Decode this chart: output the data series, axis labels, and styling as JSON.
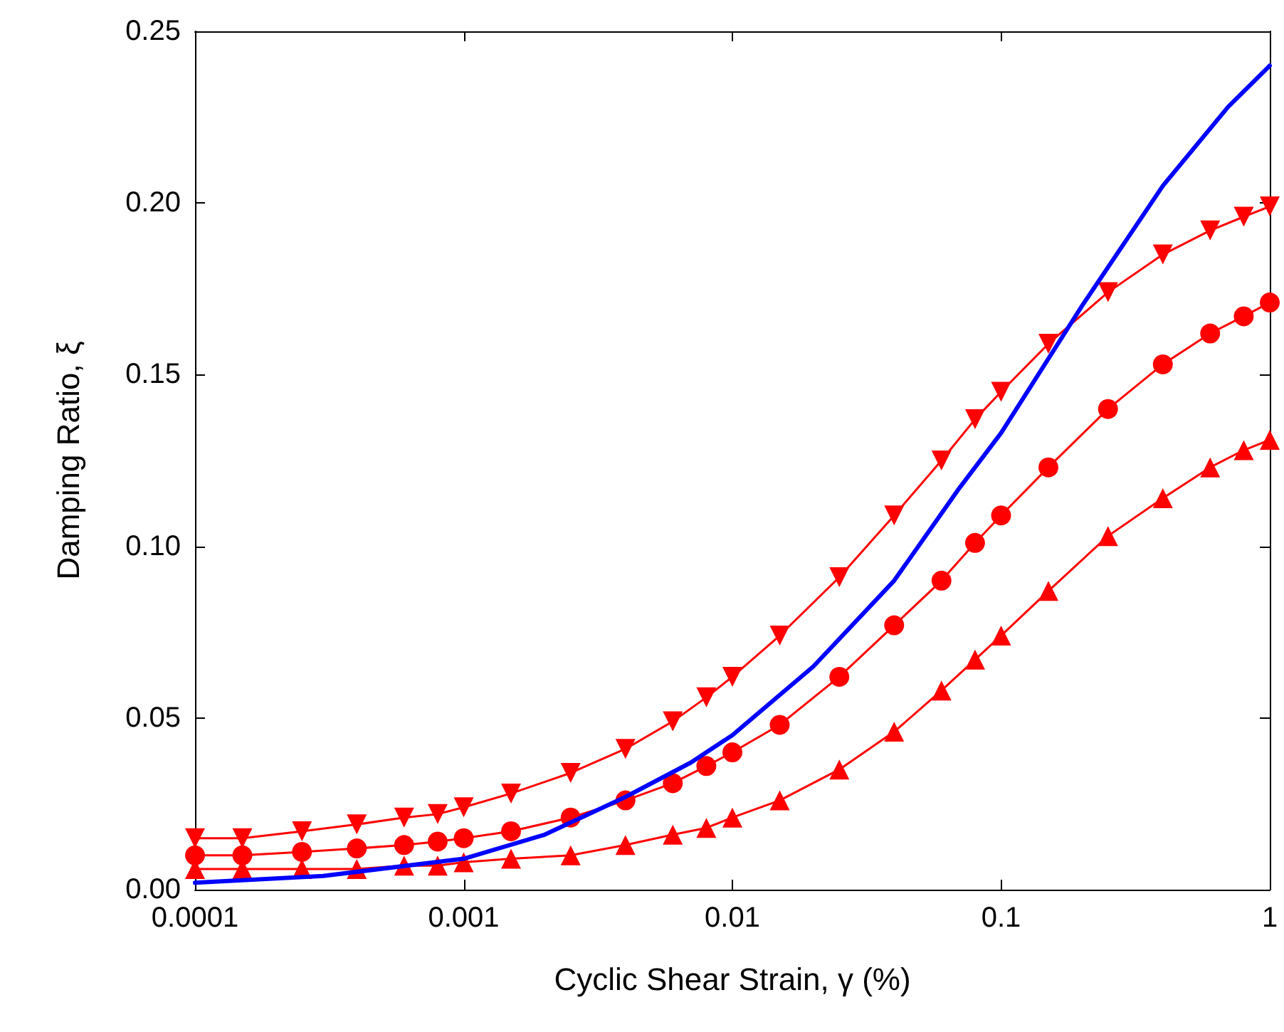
{
  "chart_data": {
    "type": "line",
    "xlabel": "Cyclic Shear Strain, γ (%)",
    "ylabel": "Damping Ratio, ξ",
    "log": "x",
    "grid": false,
    "line_style": "solid",
    "xlim": [
      0.0001,
      1
    ],
    "xticks": [
      {
        "value": 0.0001,
        "label": "0.0001"
      },
      {
        "value": 0.001,
        "label": "0.001"
      },
      {
        "value": 0.01,
        "label": "0.01"
      },
      {
        "value": 0.1,
        "label": "0.1"
      },
      {
        "value": 1,
        "label": "1"
      }
    ],
    "ylim": [
      0,
      0.25
    ],
    "yticks": [
      {
        "value": 0,
        "label": "0.00"
      },
      {
        "value": 0.05,
        "label": "0.05"
      },
      {
        "value": 0.1,
        "label": "0.10"
      },
      {
        "value": 0.15,
        "label": "0.15"
      },
      {
        "value": 0.2,
        "label": "0.20"
      },
      {
        "value": 0.25,
        "label": "0.25"
      }
    ],
    "series": [
      {
        "color": "#ff0000",
        "marker": "triangle-down",
        "x": [
          0.0001,
          0.00015,
          0.00025,
          0.0004,
          0.0006,
          0.0008,
          0.001,
          0.0015,
          0.0025,
          0.004,
          0.006,
          0.008,
          0.01,
          0.015,
          0.025,
          0.04,
          0.06,
          0.08,
          0.1,
          0.15,
          0.25,
          0.4,
          0.6,
          0.8,
          1
        ],
        "values": [
          0.015,
          0.015,
          0.017,
          0.019,
          0.021,
          0.022,
          0.024,
          0.028,
          0.034,
          0.041,
          0.049,
          0.056,
          0.062,
          0.074,
          0.091,
          0.109,
          0.125,
          0.137,
          0.145,
          0.159,
          0.174,
          0.185,
          0.192,
          0.196,
          0.199
        ]
      },
      {
        "color": "#ff0000",
        "marker": "circle",
        "x": [
          0.0001,
          0.00015,
          0.00025,
          0.0004,
          0.0006,
          0.0008,
          0.001,
          0.0015,
          0.0025,
          0.004,
          0.006,
          0.008,
          0.01,
          0.015,
          0.025,
          0.04,
          0.06,
          0.08,
          0.1,
          0.15,
          0.25,
          0.4,
          0.6,
          0.8,
          1
        ],
        "values": [
          0.01,
          0.01,
          0.011,
          0.012,
          0.013,
          0.014,
          0.015,
          0.017,
          0.021,
          0.026,
          0.031,
          0.036,
          0.04,
          0.048,
          0.062,
          0.077,
          0.09,
          0.101,
          0.109,
          0.123,
          0.14,
          0.153,
          0.162,
          0.167,
          0.171
        ]
      },
      {
        "color": "#ff0000",
        "marker": "triangle",
        "x": [
          0.0001,
          0.00015,
          0.00025,
          0.0004,
          0.0006,
          0.0008,
          0.001,
          0.0015,
          0.0025,
          0.004,
          0.006,
          0.008,
          0.01,
          0.015,
          0.025,
          0.04,
          0.06,
          0.08,
          0.1,
          0.15,
          0.25,
          0.4,
          0.6,
          0.8,
          1
        ],
        "values": [
          0.006,
          0.006,
          0.006,
          0.006,
          0.007,
          0.007,
          0.008,
          0.009,
          0.01,
          0.013,
          0.016,
          0.018,
          0.021,
          0.026,
          0.035,
          0.046,
          0.058,
          0.067,
          0.074,
          0.087,
          0.103,
          0.114,
          0.123,
          0.128,
          0.131
        ]
      },
      {
        "color": "#0000ff",
        "marker": "none",
        "x": [
          0.0001,
          0.0003,
          0.001,
          0.002,
          0.004,
          0.007,
          0.01,
          0.02,
          0.04,
          0.07,
          0.1,
          0.2,
          0.4,
          0.7,
          1
        ],
        "values": [
          0.002,
          0.004,
          0.009,
          0.016,
          0.027,
          0.037,
          0.045,
          0.065,
          0.09,
          0.117,
          0.133,
          0.17,
          0.205,
          0.228,
          0.24
        ]
      }
    ]
  }
}
